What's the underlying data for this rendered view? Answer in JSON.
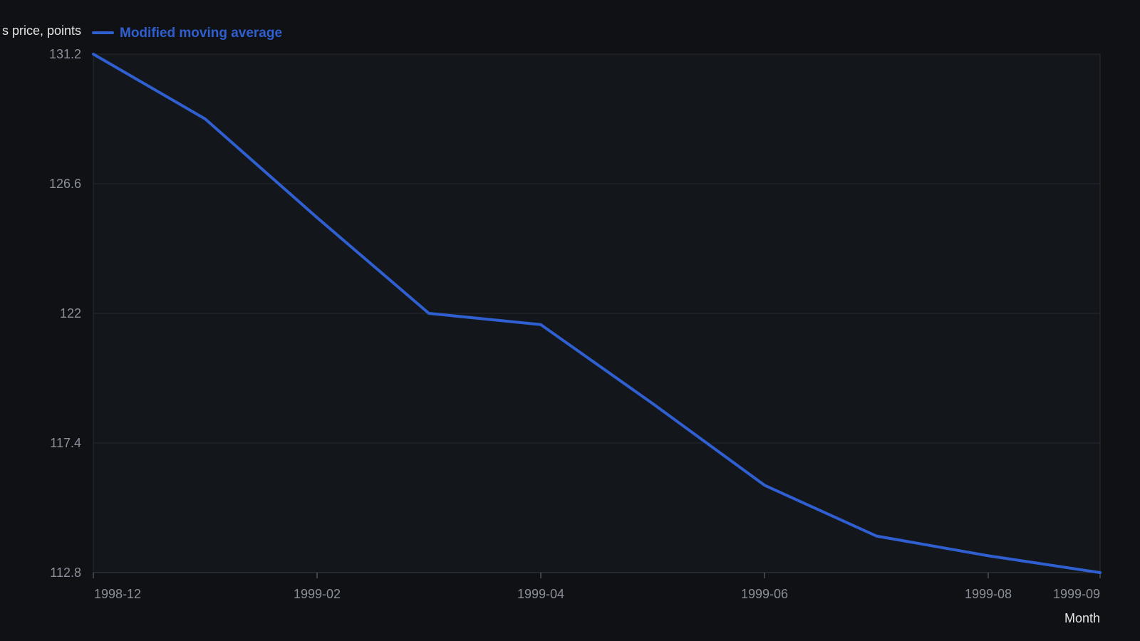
{
  "chart_data": {
    "type": "line",
    "title": "",
    "ylabel": "s price, points",
    "xlabel": "Month",
    "x": [
      "1998-12",
      "1999-01",
      "1999-02",
      "1999-03",
      "1999-04",
      "1999-05",
      "1999-06",
      "1999-07",
      "1999-08",
      "1999-09"
    ],
    "series": [
      {
        "name": "Modified moving average",
        "values": [
          131.2,
          128.9,
          125.4,
          122.0,
          121.6,
          118.8,
          115.9,
          114.1,
          113.4,
          112.8
        ]
      }
    ],
    "ylim": [
      112.8,
      131.2
    ],
    "yticks": [
      "131.2",
      "126.6",
      "122",
      "117.4",
      "112.8"
    ],
    "xticks": [
      "1998-12",
      "1999-02",
      "1999-04",
      "1999-06",
      "1999-08",
      "1999-09"
    ],
    "grid": true,
    "legend": "top-left",
    "colors": {
      "background": "#0f1115",
      "plot_background": "#13161b",
      "line": "#2f5fd0",
      "grid": "#262a31",
      "tick_text": "#8a8f98",
      "label_text": "#e6e6e6"
    }
  }
}
